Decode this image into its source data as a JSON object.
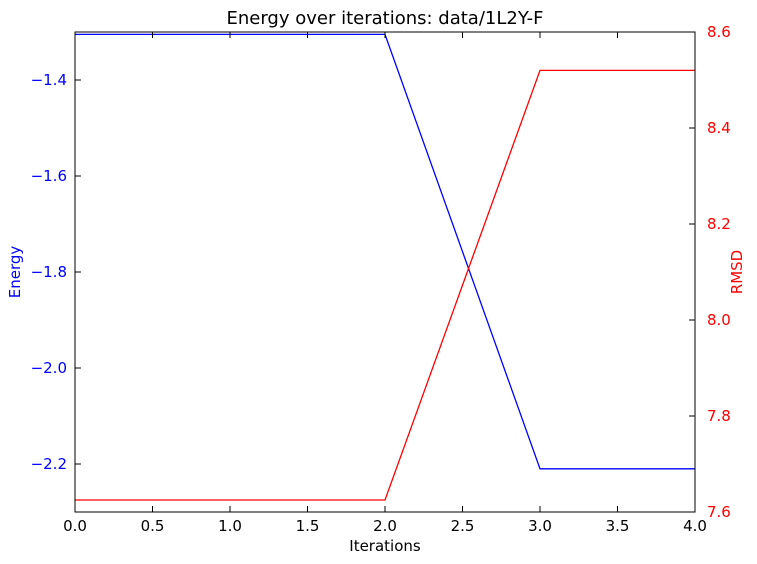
{
  "chart_data": {
    "type": "line",
    "title": "Energy over iterations: data/1L2Y-F",
    "xlabel": "Iterations",
    "ylabel_left": "Energy",
    "ylabel_right": "RMSD",
    "xlim": [
      0,
      4
    ],
    "ylim_left": [
      -2.3,
      -1.3
    ],
    "ylim_right": [
      7.6,
      8.6
    ],
    "x": [
      0,
      1,
      2,
      3,
      4
    ],
    "series": [
      {
        "name": "Energy",
        "axis": "left",
        "color": "#0000ff",
        "values": [
          -1.305,
          -1.305,
          -1.305,
          -2.21,
          -2.21
        ]
      },
      {
        "name": "RMSD",
        "axis": "right",
        "color": "#ff0000",
        "values": [
          7.625,
          7.625,
          7.625,
          8.52,
          8.52
        ]
      }
    ],
    "x_ticks": [
      "0.0",
      "0.5",
      "1.0",
      "1.5",
      "2.0",
      "2.5",
      "3.0",
      "3.5",
      "4.0"
    ],
    "y_left_ticks": [
      "−1.4",
      "−1.6",
      "−1.8",
      "−2.0",
      "−2.2"
    ],
    "y_right_ticks": [
      "7.6",
      "7.8",
      "8.0",
      "8.2",
      "8.4",
      "8.6"
    ],
    "grid": false,
    "legend": "none"
  }
}
